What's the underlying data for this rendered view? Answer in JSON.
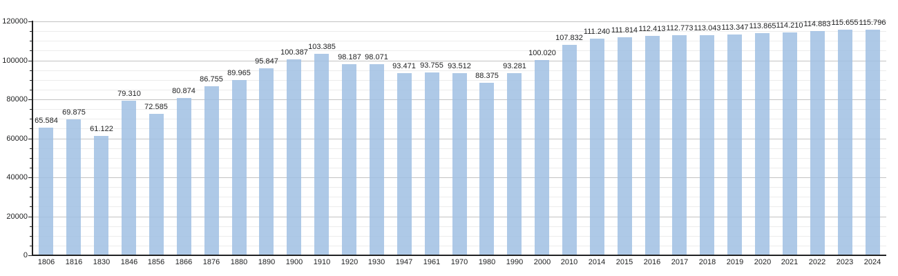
{
  "chart_data": {
    "type": "bar",
    "title": "",
    "categories": [
      "1806",
      "1816",
      "1830",
      "1846",
      "1856",
      "1866",
      "1876",
      "1880",
      "1890",
      "1900",
      "1910",
      "1920",
      "1930",
      "1947",
      "1961",
      "1970",
      "1980",
      "1990",
      "2000",
      "2010",
      "2014",
      "2015",
      "2016",
      "2017",
      "2018",
      "2019",
      "2020",
      "2021",
      "2022",
      "2023",
      "2024"
    ],
    "values": [
      65584,
      69875,
      61122,
      79310,
      72585,
      80874,
      86755,
      89965,
      95847,
      100387,
      103385,
      98187,
      98071,
      93471,
      93755,
      93512,
      88375,
      93281,
      100020,
      107832,
      111240,
      111814,
      112413,
      112773,
      113043,
      113347,
      113865,
      114210,
      114883,
      115655,
      115796
    ],
    "value_labels": [
      "65.584",
      "69.875",
      "61.122",
      "79.310",
      "72.585",
      "80.874",
      "86.755",
      "89.965",
      "95.847",
      "100.387",
      "103.385",
      "98.187",
      "98.071",
      "93.471",
      "93.755",
      "93.512",
      "88.375",
      "93.281",
      "100.020",
      "107.832",
      "111.240",
      "111.814",
      "112.413",
      "112.773",
      "113.043",
      "113.347",
      "113.865",
      "114.210",
      "114.883",
      "115.655",
      "115.796"
    ],
    "xlabel": "",
    "ylabel": "",
    "ylim": [
      0,
      120000
    ],
    "y_major_step": 20000,
    "y_minor_step": 5000,
    "y_tick_labels": [
      "0",
      "20000",
      "40000",
      "60000",
      "80000",
      "100000",
      "120000"
    ],
    "grid": "major-and-minor-horizontal",
    "legend_position": "none",
    "colors": {
      "bar_fill": "#aec9e7",
      "bar_fill_rgba": "rgba(160,192,227,0.85)",
      "major_grid": "#c3c3c3",
      "minor_grid": "#ececec",
      "axis": "#202122",
      "text": "#202122",
      "background": "#ffffff"
    }
  }
}
